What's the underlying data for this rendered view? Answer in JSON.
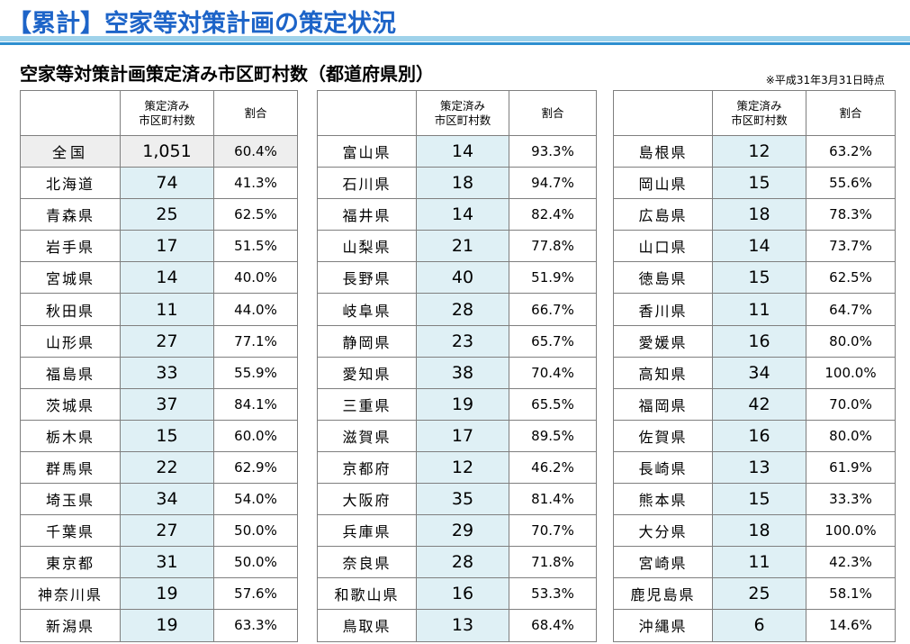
{
  "page_title": "【累計】空家等対策計画の策定状況",
  "subtitle": "空家等対策計画策定済み市区町村数（都道府県別）",
  "date_note": "※平成31年3月31日時点",
  "headers": {
    "count_line1": "策定済み",
    "count_line2": "市区町村数",
    "ratio": "割合"
  },
  "columns": [
    [
      {
        "name": "全国",
        "count": "1,051",
        "ratio": "60.4%"
      },
      {
        "name": "北海道",
        "count": "74",
        "ratio": "41.3%"
      },
      {
        "name": "青森県",
        "count": "25",
        "ratio": "62.5%"
      },
      {
        "name": "岩手県",
        "count": "17",
        "ratio": "51.5%"
      },
      {
        "name": "宮城県",
        "count": "14",
        "ratio": "40.0%"
      },
      {
        "name": "秋田県",
        "count": "11",
        "ratio": "44.0%"
      },
      {
        "name": "山形県",
        "count": "27",
        "ratio": "77.1%"
      },
      {
        "name": "福島県",
        "count": "33",
        "ratio": "55.9%"
      },
      {
        "name": "茨城県",
        "count": "37",
        "ratio": "84.1%"
      },
      {
        "name": "栃木県",
        "count": "15",
        "ratio": "60.0%"
      },
      {
        "name": "群馬県",
        "count": "22",
        "ratio": "62.9%"
      },
      {
        "name": "埼玉県",
        "count": "34",
        "ratio": "54.0%"
      },
      {
        "name": "千葉県",
        "count": "27",
        "ratio": "50.0%"
      },
      {
        "name": "東京都",
        "count": "31",
        "ratio": "50.0%"
      },
      {
        "name": "神奈川県",
        "count": "19",
        "ratio": "57.6%"
      },
      {
        "name": "新潟県",
        "count": "19",
        "ratio": "63.3%"
      }
    ],
    [
      {
        "name": "富山県",
        "count": "14",
        "ratio": "93.3%"
      },
      {
        "name": "石川県",
        "count": "18",
        "ratio": "94.7%"
      },
      {
        "name": "福井県",
        "count": "14",
        "ratio": "82.4%"
      },
      {
        "name": "山梨県",
        "count": "21",
        "ratio": "77.8%"
      },
      {
        "name": "長野県",
        "count": "40",
        "ratio": "51.9%"
      },
      {
        "name": "岐阜県",
        "count": "28",
        "ratio": "66.7%"
      },
      {
        "name": "静岡県",
        "count": "23",
        "ratio": "65.7%"
      },
      {
        "name": "愛知県",
        "count": "38",
        "ratio": "70.4%"
      },
      {
        "name": "三重県",
        "count": "19",
        "ratio": "65.5%"
      },
      {
        "name": "滋賀県",
        "count": "17",
        "ratio": "89.5%"
      },
      {
        "name": "京都府",
        "count": "12",
        "ratio": "46.2%"
      },
      {
        "name": "大阪府",
        "count": "35",
        "ratio": "81.4%"
      },
      {
        "name": "兵庫県",
        "count": "29",
        "ratio": "70.7%"
      },
      {
        "name": "奈良県",
        "count": "28",
        "ratio": "71.8%"
      },
      {
        "name": "和歌山県",
        "count": "16",
        "ratio": "53.3%"
      },
      {
        "name": "鳥取県",
        "count": "13",
        "ratio": "68.4%"
      }
    ],
    [
      {
        "name": "島根県",
        "count": "12",
        "ratio": "63.2%"
      },
      {
        "name": "岡山県",
        "count": "15",
        "ratio": "55.6%"
      },
      {
        "name": "広島県",
        "count": "18",
        "ratio": "78.3%"
      },
      {
        "name": "山口県",
        "count": "14",
        "ratio": "73.7%"
      },
      {
        "name": "徳島県",
        "count": "15",
        "ratio": "62.5%"
      },
      {
        "name": "香川県",
        "count": "11",
        "ratio": "64.7%"
      },
      {
        "name": "愛媛県",
        "count": "16",
        "ratio": "80.0%"
      },
      {
        "name": "高知県",
        "count": "34",
        "ratio": "100.0%"
      },
      {
        "name": "福岡県",
        "count": "42",
        "ratio": "70.0%"
      },
      {
        "name": "佐賀県",
        "count": "16",
        "ratio": "80.0%"
      },
      {
        "name": "長崎県",
        "count": "13",
        "ratio": "61.9%"
      },
      {
        "name": "熊本県",
        "count": "15",
        "ratio": "33.3%"
      },
      {
        "name": "大分県",
        "count": "18",
        "ratio": "100.0%"
      },
      {
        "name": "宮崎県",
        "count": "11",
        "ratio": "42.3%"
      },
      {
        "name": "鹿児島県",
        "count": "25",
        "ratio": "58.1%"
      },
      {
        "name": "沖縄県",
        "count": "6",
        "ratio": "14.6%"
      }
    ]
  ],
  "colors": {
    "title": "#1d64c8",
    "count_cell": "#dff0f5",
    "nation_row": "#eeeeee",
    "rule_light": "#9fd2ea",
    "rule_dark": "#2e8fd0"
  }
}
